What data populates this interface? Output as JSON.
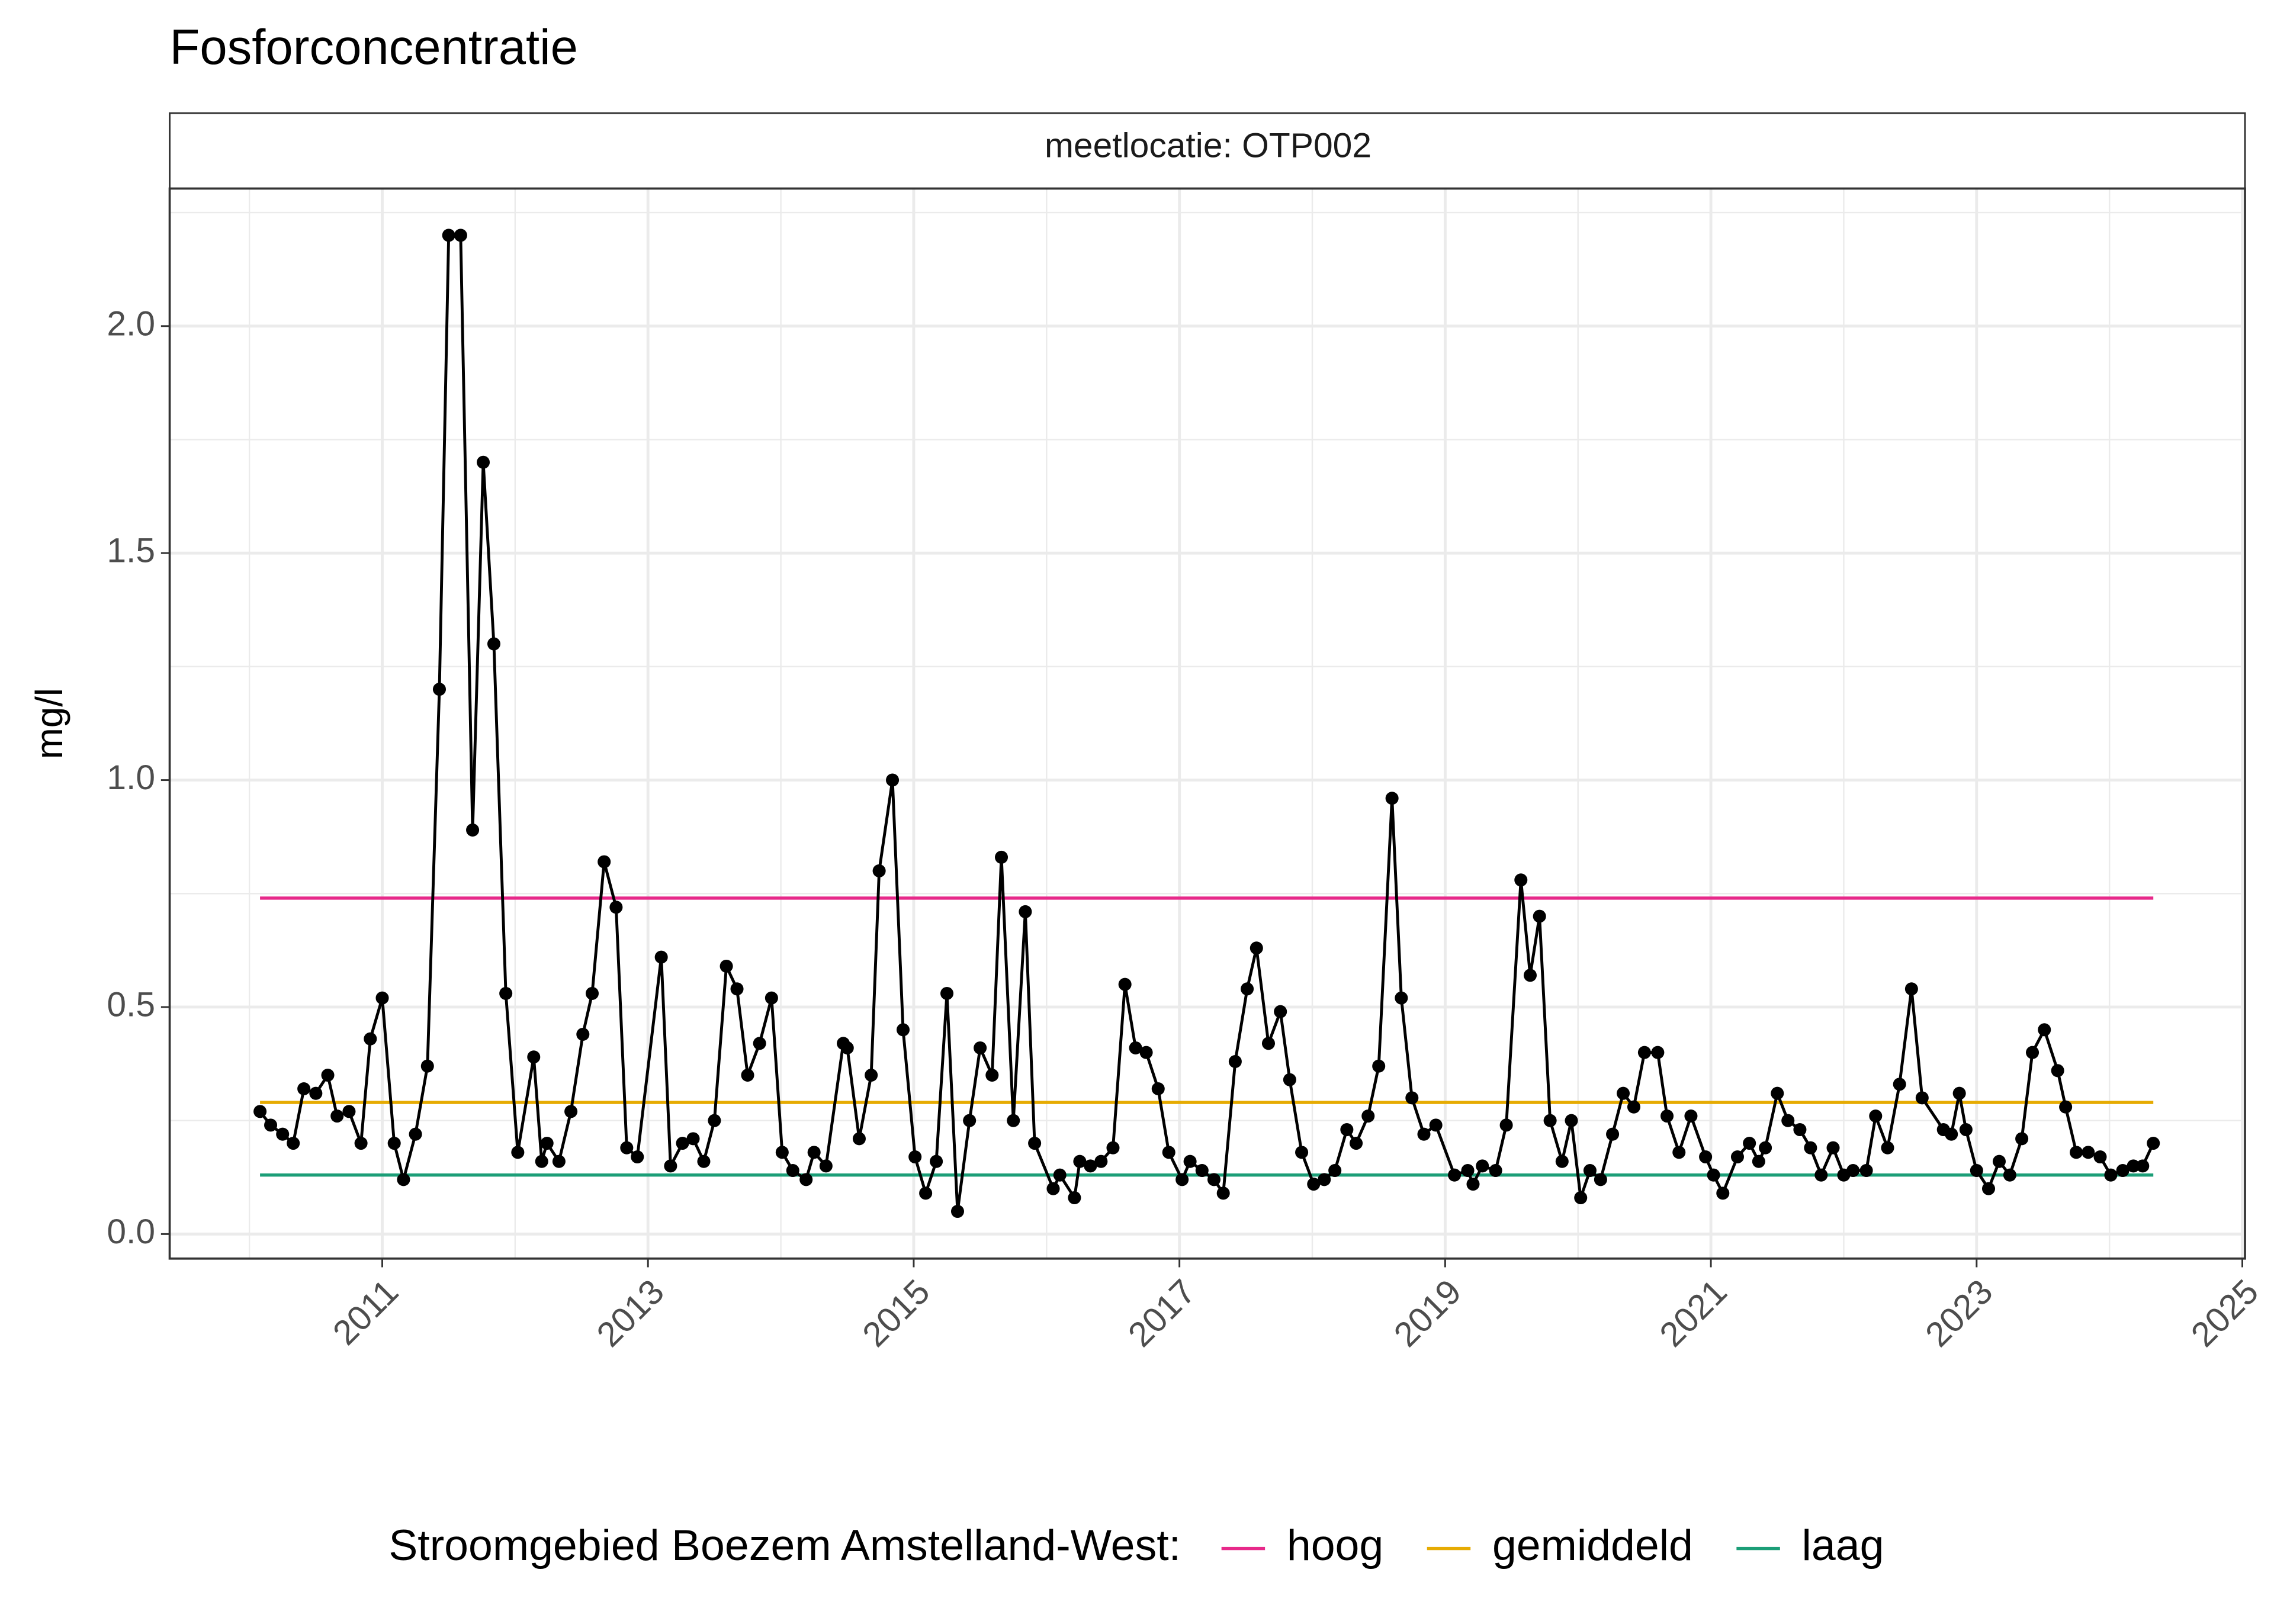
{
  "chart_data": {
    "type": "line",
    "title": "Fosforconcentratie",
    "subtitle": "meetlocatie: OTP002",
    "y_label": "mg/l",
    "legend_title": "Stroomgebied Boezem Amstelland-West:",
    "legend_position": "bottom",
    "color": "#000000",
    "x": [
      2010.08,
      2010.16,
      2010.25,
      2010.33,
      2010.41,
      2010.5,
      2010.59,
      2010.66,
      2010.75,
      2010.84,
      2010.91,
      2011.0,
      2011.09,
      2011.16,
      2011.25,
      2011.34,
      2011.43,
      2011.5,
      2011.59,
      2011.68,
      2011.76,
      2011.84,
      2011.93,
      2012.02,
      2012.14,
      2012.2,
      2012.24,
      2012.33,
      2012.42,
      2012.51,
      2012.58,
      2012.67,
      2012.76,
      2012.84,
      2012.92,
      2013.1,
      2013.17,
      2013.26,
      2013.34,
      2013.42,
      2013.5,
      2013.59,
      2013.67,
      2013.75,
      2013.84,
      2013.93,
      2014.01,
      2014.09,
      2014.19,
      2014.25,
      2014.34,
      2014.47,
      2014.5,
      2014.59,
      2014.68,
      2014.74,
      2014.84,
      2014.92,
      2015.01,
      2015.09,
      2015.17,
      2015.25,
      2015.33,
      2015.42,
      2015.5,
      2015.59,
      2015.66,
      2015.75,
      2015.84,
      2015.91,
      2016.05,
      2016.1,
      2016.21,
      2016.25,
      2016.33,
      2016.41,
      2016.5,
      2016.59,
      2016.67,
      2016.75,
      2016.84,
      2016.92,
      2017.02,
      2017.08,
      2017.17,
      2017.26,
      2017.33,
      2017.42,
      2017.51,
      2017.58,
      2017.67,
      2017.76,
      2017.83,
      2017.92,
      2018.01,
      2018.09,
      2018.17,
      2018.26,
      2018.33,
      2018.42,
      2018.5,
      2018.6,
      2018.67,
      2018.75,
      2018.84,
      2018.93,
      2019.07,
      2019.17,
      2019.21,
      2019.28,
      2019.38,
      2019.46,
      2019.57,
      2019.64,
      2019.71,
      2019.79,
      2019.88,
      2019.95,
      2020.02,
      2020.09,
      2020.17,
      2020.26,
      2020.34,
      2020.42,
      2020.5,
      2020.6,
      2020.67,
      2020.76,
      2020.85,
      2020.96,
      2021.02,
      2021.09,
      2021.2,
      2021.29,
      2021.36,
      2021.41,
      2021.5,
      2021.58,
      2021.67,
      2021.75,
      2021.83,
      2021.92,
      2022.0,
      2022.07,
      2022.17,
      2022.24,
      2022.33,
      2022.42,
      2022.51,
      2022.59,
      2022.75,
      2022.81,
      2022.87,
      2022.92,
      2023.0,
      2023.09,
      2023.17,
      2023.25,
      2023.34,
      2023.42,
      2023.51,
      2023.61,
      2023.67,
      2023.75,
      2023.84,
      2023.93,
      2024.01,
      2024.1,
      2024.18,
      2024.25,
      2024.33
    ],
    "values": [
      0.27,
      0.24,
      0.22,
      0.2,
      0.32,
      0.31,
      0.35,
      0.26,
      0.27,
      0.2,
      0.43,
      0.52,
      0.2,
      0.12,
      0.22,
      0.37,
      1.2,
      2.2,
      2.2,
      0.89,
      1.7,
      1.3,
      0.53,
      0.18,
      0.39,
      0.16,
      0.2,
      0.16,
      0.27,
      0.44,
      0.53,
      0.82,
      0.72,
      0.19,
      0.17,
      0.61,
      0.15,
      0.2,
      0.21,
      0.16,
      0.25,
      0.59,
      0.54,
      0.35,
      0.42,
      0.52,
      0.18,
      0.14,
      0.12,
      0.18,
      0.15,
      0.42,
      0.41,
      0.21,
      0.35,
      0.8,
      1.0,
      0.45,
      0.17,
      0.09,
      0.16,
      0.53,
      0.05,
      0.25,
      0.41,
      0.35,
      0.83,
      0.25,
      0.71,
      0.2,
      0.1,
      0.13,
      0.08,
      0.16,
      0.15,
      0.16,
      0.19,
      0.55,
      0.41,
      0.4,
      0.32,
      0.18,
      0.12,
      0.16,
      0.14,
      0.12,
      0.09,
      0.38,
      0.54,
      0.63,
      0.42,
      0.49,
      0.34,
      0.18,
      0.11,
      0.12,
      0.14,
      0.23,
      0.2,
      0.26,
      0.37,
      0.96,
      0.52,
      0.3,
      0.22,
      0.24,
      0.13,
      0.14,
      0.11,
      0.15,
      0.14,
      0.24,
      0.78,
      0.57,
      0.7,
      0.25,
      0.16,
      0.25,
      0.08,
      0.14,
      0.12,
      0.22,
      0.31,
      0.28,
      0.4,
      0.4,
      0.26,
      0.18,
      0.26,
      0.17,
      0.13,
      0.09,
      0.17,
      0.2,
      0.16,
      0.19,
      0.31,
      0.25,
      0.23,
      0.19,
      0.13,
      0.19,
      0.13,
      0.14,
      0.14,
      0.26,
      0.19,
      0.33,
      0.54,
      0.3,
      0.23,
      0.22,
      0.31,
      0.23,
      0.14,
      0.1,
      0.16,
      0.13,
      0.21,
      0.4,
      0.45,
      0.36,
      0.28,
      0.18,
      0.18,
      0.17,
      0.13,
      0.14,
      0.15,
      0.15,
      0.2
    ],
    "reference_lines": [
      {
        "name": "hoog",
        "color": "#e7298a",
        "value": 0.74
      },
      {
        "name": "gemiddeld",
        "color": "#e6ab02",
        "value": 0.29
      },
      {
        "name": "laag",
        "color": "#1b9e77",
        "value": 0.13
      }
    ],
    "xlim": [
      2009.4,
      2025.02
    ],
    "ylim": [
      -0.054,
      2.303
    ],
    "xticks": [
      2011,
      2013,
      2015,
      2017,
      2019,
      2021,
      2023,
      2025
    ],
    "minor_xticks": [
      2010,
      2012,
      2014,
      2016,
      2018,
      2020,
      2022,
      2024
    ],
    "yticks": [
      {
        "value": 0,
        "label": "0.0"
      },
      0.5,
      {
        "value": 1,
        "label": "1.0"
      },
      1.5,
      {
        "value": 2,
        "label": "2.0"
      }
    ],
    "minor_yticks": [
      0.25,
      0.75,
      1.25,
      1.75,
      2.25
    ],
    "grid": true
  }
}
